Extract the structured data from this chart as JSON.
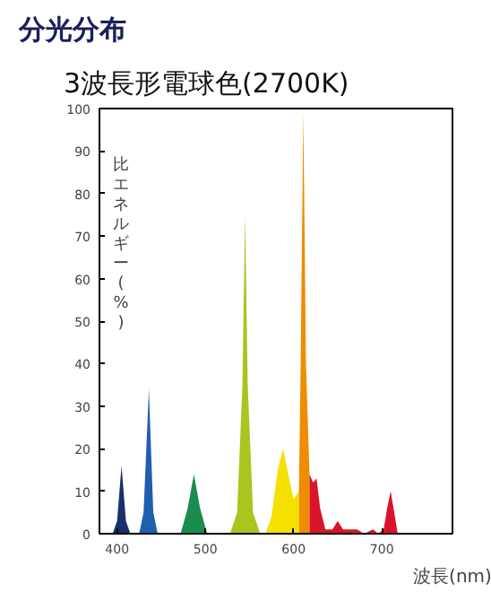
{
  "chart_data": {
    "type": "area",
    "title": "分光分布",
    "subtitle": "3波長形電球色(2700K)",
    "xlabel": "波長(nm)",
    "ylabel": "比エネルギー(%)",
    "xlim": [
      380,
      780
    ],
    "ylim": [
      0,
      100
    ],
    "xticks": [
      400,
      500,
      600,
      700
    ],
    "yticks": [
      0,
      10,
      20,
      30,
      40,
      50,
      60,
      70,
      80,
      90,
      100
    ],
    "grid": false,
    "series": [
      {
        "color": "#1a2f6b",
        "x": [
          395,
          400,
          405,
          410,
          415
        ],
        "values": [
          0,
          3,
          16,
          3,
          0
        ]
      },
      {
        "color": "#1f5fb0",
        "x": [
          425,
          430,
          436,
          441,
          446
        ],
        "values": [
          0,
          5,
          34,
          5,
          0
        ]
      },
      {
        "color": "#1a8c4e",
        "x": [
          472,
          480,
          487,
          494,
          502
        ],
        "values": [
          0,
          6,
          14,
          6,
          0
        ]
      },
      {
        "color": "#a8c520",
        "x": [
          528,
          536,
          542,
          545,
          548,
          554,
          562
        ],
        "values": [
          0,
          5,
          35,
          75,
          35,
          5,
          0
        ]
      },
      {
        "color": "#f5e000",
        "x": [
          568,
          575,
          582,
          588,
          594,
          600,
          606
        ],
        "values": [
          0,
          4,
          15,
          20,
          14,
          8,
          10
        ]
      },
      {
        "color": "#f08c00",
        "x": [
          606,
          608,
          611,
          614,
          618
        ],
        "values": [
          10,
          40,
          99,
          40,
          14
        ]
      },
      {
        "color": "#d9142a",
        "x": [
          618,
          622,
          626,
          630,
          636,
          644,
          650,
          656,
          662,
          672,
          680,
          690,
          696,
          702,
          706,
          710,
          714,
          718
        ],
        "values": [
          14,
          12,
          13,
          6,
          1,
          1,
          3,
          1,
          1,
          1,
          0,
          1,
          0,
          1,
          6,
          10,
          5,
          0
        ]
      }
    ]
  }
}
